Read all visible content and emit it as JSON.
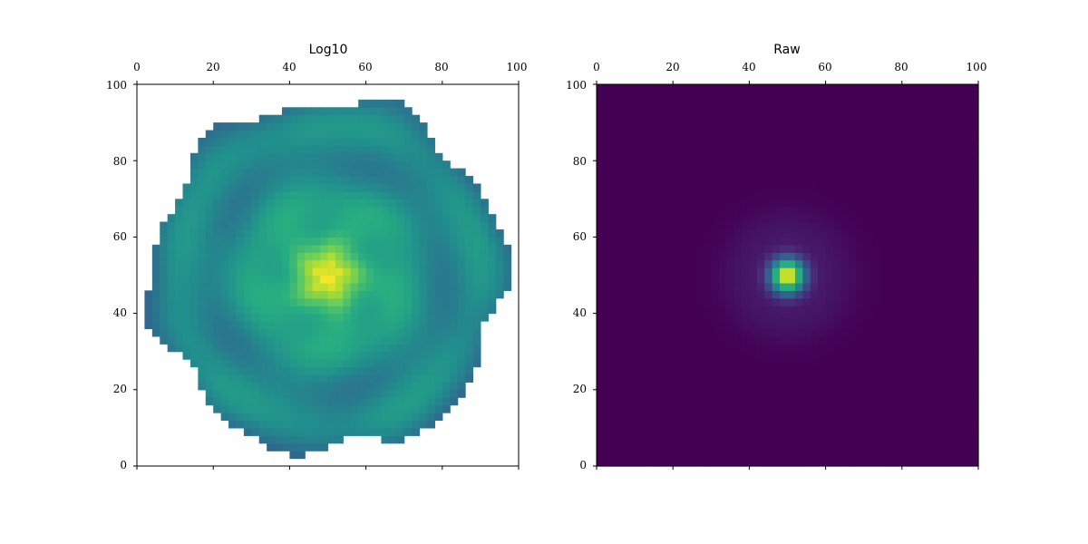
{
  "colors": {
    "colormap": "viridis",
    "background": "#ffffff",
    "raw_background": "#440154"
  },
  "chart_data": [
    {
      "type": "heatmap",
      "title": "Log10",
      "xlabel": "",
      "ylabel": "",
      "xlim": [
        0,
        100
      ],
      "ylim": [
        0,
        100
      ],
      "x_ticks": [
        "0",
        "20",
        "40",
        "60",
        "80",
        "100"
      ],
      "y_ticks": [
        "0",
        "20",
        "40",
        "60",
        "80",
        "100"
      ],
      "x_tick_position": "top",
      "masked_outside_support": true,
      "center": [
        50,
        50
      ],
      "grid": false
    },
    {
      "type": "heatmap",
      "title": "Raw",
      "xlabel": "",
      "ylabel": "",
      "xlim": [
        0,
        100
      ],
      "ylim": [
        0,
        100
      ],
      "x_ticks": [
        "0",
        "20",
        "40",
        "60",
        "80",
        "100"
      ],
      "y_ticks": [
        "0",
        "20",
        "40",
        "60",
        "80",
        "100"
      ],
      "x_tick_position": "top",
      "masked_outside_support": false,
      "center": [
        50,
        50
      ],
      "grid": false
    }
  ]
}
